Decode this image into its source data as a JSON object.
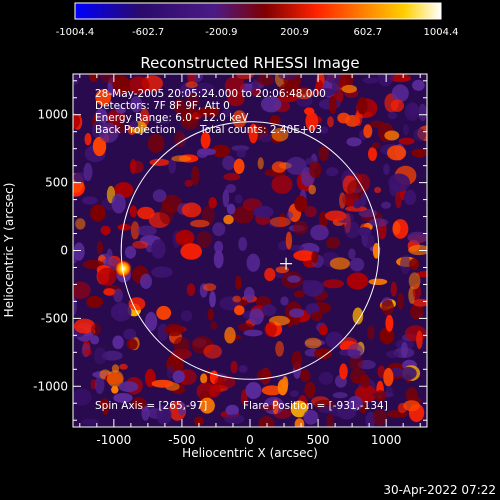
{
  "colorbar": {
    "ticks": [
      "-1004.4",
      "-602.7",
      "-200.9",
      "200.9",
      "602.7",
      "1004.4"
    ],
    "colors": [
      "#0000ff",
      "#2a0a6a",
      "#4b1b86",
      "#7f0000",
      "#ff2200",
      "#ff7a00",
      "#ffd000",
      "#ffffff"
    ]
  },
  "title": "Reconstructed RHESSI Image",
  "info_lines": [
    "28-May-2005 20:05:24.000 to 20:06:48.000",
    "Detectors: 7F 8F 9F, Att 0",
    "Energy Range: 6.0 - 12.0 keV"
  ],
  "back_projection": "Back Projection",
  "total_counts": "Total counts: 2.40E+03",
  "spin_axis": "Spin Axis = [265,-97]",
  "flare_position": "Flare Position = [-931,-134]",
  "axes": {
    "xlabel": "Heliocentric X (arcsec)",
    "ylabel": "Heliocentric Y (arcsec)",
    "xticks": [
      "-1000",
      "-500",
      "0",
      "500",
      "1000"
    ],
    "yticks": [
      "1000",
      "500",
      "0",
      "-500",
      "-1000"
    ],
    "x_values": [
      -1000,
      -500,
      0,
      500,
      1000
    ],
    "y_values": [
      1000,
      500,
      0,
      -500,
      -1000
    ],
    "xlim": [
      -1300,
      1300
    ],
    "ylim": [
      -1300,
      1300
    ]
  },
  "solar_limb_radius_arcsec": 946,
  "crosshair_arcsec": [
    265,
    -97
  ],
  "hotspot_arcsec": [
    -931,
    -134
  ],
  "timestamp": "30-Apr-2022 07:22"
}
